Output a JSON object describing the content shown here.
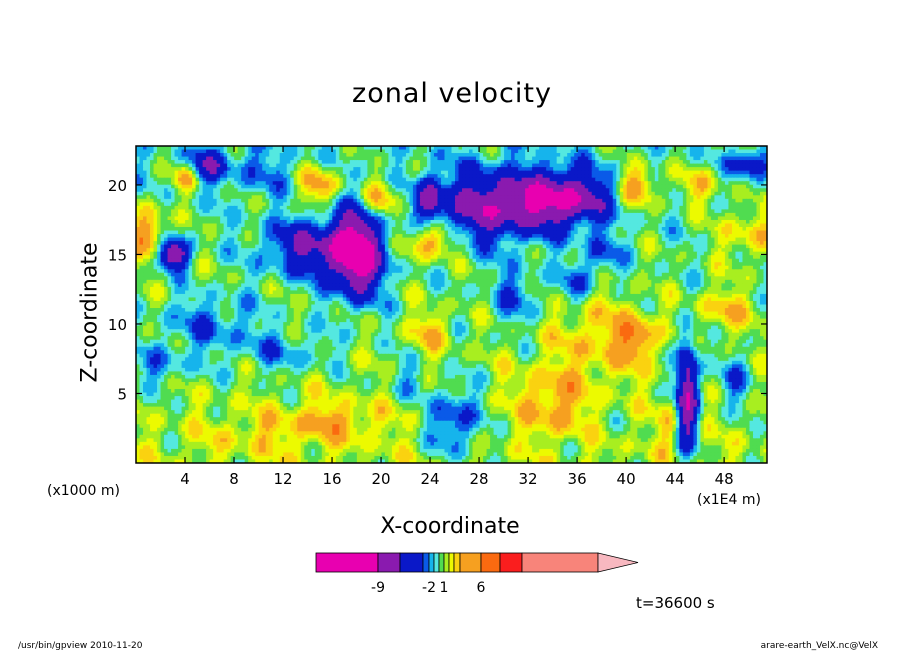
{
  "chart_data": {
    "type": "heatmap",
    "title": "zonal velocity",
    "xlabel": "X-coordinate",
    "ylabel": "Z-coordinate",
    "x_unit_left": "(x1000 m)",
    "x_unit_right": "(x1E4 m)",
    "xlim": [
      0,
      51.5
    ],
    "ylim": [
      0,
      22.8
    ],
    "x_ticks": [
      "4",
      "8",
      "12",
      "16",
      "20",
      "24",
      "28",
      "32",
      "36",
      "40",
      "44",
      "48"
    ],
    "y_ticks": [
      "5",
      "10",
      "15",
      "20"
    ],
    "colorbar": {
      "levels": [
        -15,
        -9,
        -6,
        -3,
        -2,
        -1,
        0,
        1,
        2,
        3,
        4,
        6,
        9,
        15,
        30
      ],
      "tick_labels": [
        "-9",
        "-2",
        "1",
        "6"
      ],
      "colors": [
        "#e800b0",
        "#8a1aaf",
        "#0a18c8",
        "#0a5ae8",
        "#16b4ec",
        "#54e8e0",
        "#50dc50",
        "#a8ee20",
        "#ecfa00",
        "#fad210",
        "#f6a020",
        "#fa6a10",
        "#fa1e1e",
        "#f8847a",
        "#f8b8c0"
      ]
    },
    "time_label": "t=36600  s"
  },
  "footer": {
    "left": "/usr/bin/gpview  2010-11-20",
    "right": "arare-earth_VelX.nc@VelX"
  }
}
